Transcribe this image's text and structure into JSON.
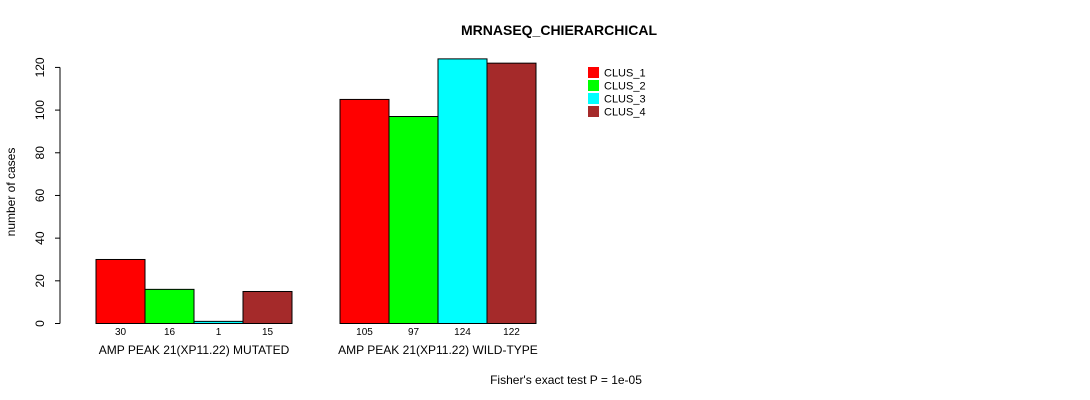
{
  "chart_data": {
    "type": "bar",
    "title": "MRNASEQ_CHIERARCHICAL",
    "xlabel": "",
    "ylabel": "number of cases",
    "ylim": [
      0,
      125
    ],
    "yticks": [
      0,
      20,
      40,
      60,
      80,
      100,
      120
    ],
    "categories": [
      "AMP PEAK 21(XP11.22) MUTATED",
      "AMP PEAK 21(XP11.22) WILD-TYPE"
    ],
    "series": [
      {
        "name": "CLUS_1",
        "color": "#ff0000",
        "values": [
          30,
          105
        ]
      },
      {
        "name": "CLUS_2",
        "color": "#00ff00",
        "values": [
          16,
          97
        ]
      },
      {
        "name": "CLUS_3",
        "color": "#00ffff",
        "values": [
          1,
          124
        ]
      },
      {
        "name": "CLUS_4",
        "color": "#a52a2a",
        "values": [
          15,
          122
        ]
      }
    ],
    "legend_position": "top-right",
    "grid": false,
    "footnote": "Fisher's exact test P = 1e-05"
  }
}
